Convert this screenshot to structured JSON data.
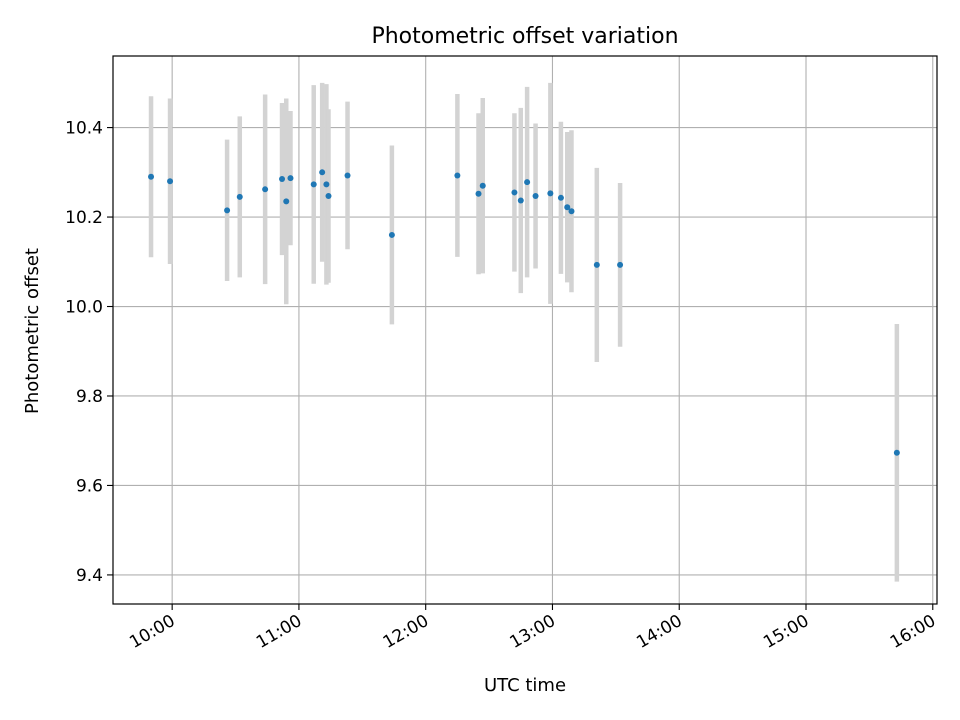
{
  "chart_data": {
    "type": "scatter",
    "title": "Photometric offset variation",
    "xlabel": "UTC time",
    "ylabel": "Photometric offset",
    "xlim": [
      "09:32",
      "16:02"
    ],
    "ylim": [
      9.335,
      10.56
    ],
    "xticks": [
      "10:00",
      "11:00",
      "12:00",
      "13:00",
      "14:00",
      "15:00",
      "16:00"
    ],
    "yticks": [
      9.4,
      9.6,
      9.8,
      10.0,
      10.2,
      10.4
    ],
    "grid": true,
    "legend": "none",
    "marker_color": "#1f77b4",
    "errorbar_color": "#d3d3d3",
    "points": [
      {
        "x": "09:50",
        "y": 10.29,
        "err": 0.18
      },
      {
        "x": "09:59",
        "y": 10.28,
        "err": 0.185
      },
      {
        "x": "10:26",
        "y": 10.215,
        "err": 0.158
      },
      {
        "x": "10:32",
        "y": 10.245,
        "err": 0.18
      },
      {
        "x": "10:44",
        "y": 10.262,
        "err": 0.212
      },
      {
        "x": "10:52",
        "y": 10.285,
        "err": 0.17
      },
      {
        "x": "10:54",
        "y": 10.235,
        "err": 0.23
      },
      {
        "x": "10:56",
        "y": 10.287,
        "err": 0.15
      },
      {
        "x": "11:07",
        "y": 10.273,
        "err": 0.222
      },
      {
        "x": "11:11",
        "y": 10.3,
        "err": 0.2
      },
      {
        "x": "11:13",
        "y": 10.273,
        "err": 0.224
      },
      {
        "x": "11:14",
        "y": 10.247,
        "err": 0.194
      },
      {
        "x": "11:23",
        "y": 10.293,
        "err": 0.165
      },
      {
        "x": "11:44",
        "y": 10.16,
        "err": 0.2
      },
      {
        "x": "12:15",
        "y": 10.293,
        "err": 0.182
      },
      {
        "x": "12:25",
        "y": 10.252,
        "err": 0.18
      },
      {
        "x": "12:27",
        "y": 10.27,
        "err": 0.196
      },
      {
        "x": "12:42",
        "y": 10.255,
        "err": 0.177
      },
      {
        "x": "12:45",
        "y": 10.237,
        "err": 0.207
      },
      {
        "x": "12:48",
        "y": 10.278,
        "err": 0.213
      },
      {
        "x": "12:52",
        "y": 10.247,
        "err": 0.162
      },
      {
        "x": "12:59",
        "y": 10.253,
        "err": 0.247
      },
      {
        "x": "13:04",
        "y": 10.243,
        "err": 0.17
      },
      {
        "x": "13:07",
        "y": 10.222,
        "err": 0.168
      },
      {
        "x": "13:09",
        "y": 10.213,
        "err": 0.181
      },
      {
        "x": "13:21",
        "y": 10.093,
        "err": 0.217
      },
      {
        "x": "13:32",
        "y": 10.093,
        "err": 0.183
      },
      {
        "x": "15:43",
        "y": 9.673,
        "err": 0.288
      }
    ]
  }
}
